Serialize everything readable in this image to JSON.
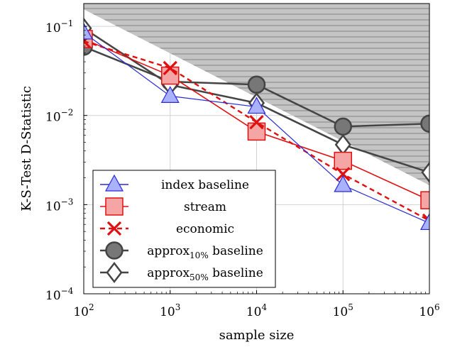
{
  "chart_data": {
    "type": "line",
    "xscale": "log",
    "yscale": "log",
    "xlim": [
      100,
      1000000
    ],
    "ylim": [
      0.0001,
      0.18
    ],
    "xlabel": "sample size",
    "ylabel": "K-S-Test D-Statistic",
    "x_ticks": [
      {
        "base": "10",
        "exp": "2"
      },
      {
        "base": "10",
        "exp": "3"
      },
      {
        "base": "10",
        "exp": "4"
      },
      {
        "base": "10",
        "exp": "5"
      },
      {
        "base": "10",
        "exp": "6"
      }
    ],
    "y_ticks": [
      {
        "base": "10",
        "exp": "−1",
        "value": 0.1
      },
      {
        "base": "10",
        "exp": "−2",
        "value": 0.01
      },
      {
        "base": "10",
        "exp": "−3",
        "value": 0.001
      },
      {
        "base": "10",
        "exp": "−4",
        "value": 0.0001
      }
    ],
    "grid": true,
    "legend_position": "bottom-left",
    "shaded_region": {
      "upper": [
        [
          100,
          0.18
        ],
        [
          1000000,
          0.18
        ]
      ],
      "lower": [
        [
          100,
          0.155
        ],
        [
          1000000,
          0.00165
        ]
      ]
    },
    "series": [
      {
        "name": "index baseline",
        "marker": "triangle",
        "color": "#2a2ad6",
        "fill": "#aab2ff",
        "x": [
          100,
          1000,
          10000,
          100000,
          1000000
        ],
        "y": [
          0.085,
          0.0165,
          0.0125,
          0.00165,
          0.00062
        ]
      },
      {
        "name": "stream",
        "marker": "square",
        "color": "#e01010",
        "fill": "#f6a5a5",
        "x": [
          100,
          1000,
          10000,
          100000,
          1000000
        ],
        "y": [
          0.072,
          0.028,
          0.0066,
          0.0031,
          0.00112
        ]
      },
      {
        "name": "economic",
        "marker": "cross",
        "color": "#e01010",
        "fill": "#e01010",
        "dashed": true,
        "x": [
          100,
          1000,
          10000,
          100000,
          1000000
        ],
        "y": [
          0.068,
          0.034,
          0.0084,
          0.0022,
          0.00066
        ]
      },
      {
        "name": "approx",
        "name_sub": "10%",
        "name_suffix": " baseline",
        "marker": "circle",
        "color": "#444444",
        "fill": "#777777",
        "x": [
          100,
          1000,
          10000,
          100000,
          1000000
        ],
        "y": [
          0.059,
          0.024,
          0.0222,
          0.0075,
          0.0081
        ]
      },
      {
        "name": "approx",
        "name_sub": "50%",
        "name_suffix": " baseline",
        "marker": "diamond",
        "color": "#444444",
        "fill": "#ffffff",
        "x": [
          100,
          1000,
          10000,
          100000,
          1000000
        ],
        "y": [
          0.095,
          0.022,
          0.0138,
          0.0047,
          0.0023
        ]
      }
    ]
  }
}
